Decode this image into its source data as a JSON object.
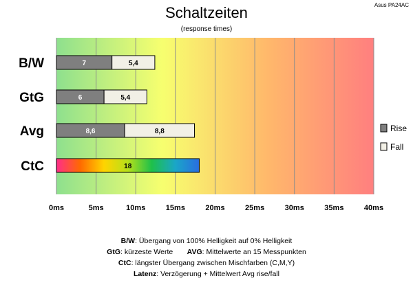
{
  "title": "Schaltzeiten",
  "subtitle": "(response times)",
  "brand": "Asus PA24AC",
  "chart_data": {
    "type": "bar",
    "orientation": "horizontal",
    "stacked": true,
    "categories": [
      "B/W",
      "GtG",
      "Avg",
      "CtC"
    ],
    "series": [
      {
        "name": "Rise",
        "color": "#7f7f7f",
        "values": [
          7,
          6,
          8.6,
          null
        ]
      },
      {
        "name": "Fall",
        "color": "#f2f0e6",
        "values": [
          5.4,
          5.4,
          8.8,
          null
        ]
      }
    ],
    "ctc": {
      "value": 18,
      "label": "18",
      "gradient": [
        "#ff2d8a",
        "#ff6a00",
        "#ffd400",
        "#b7e01a",
        "#1ec04a",
        "#1aa6c8",
        "#2a6de0"
      ]
    },
    "bar_labels": [
      [
        "7",
        "5,4"
      ],
      [
        "6",
        "5,4"
      ],
      [
        "8,6",
        "8,8"
      ],
      [
        "18"
      ]
    ],
    "xlim": [
      0,
      40
    ],
    "x_ticks": [
      "0ms",
      "5ms",
      "10ms",
      "15ms",
      "20ms",
      "25ms",
      "30ms",
      "35ms",
      "40ms"
    ],
    "x_tick_values": [
      0,
      5,
      10,
      15,
      20,
      25,
      30,
      35,
      40
    ],
    "background_gradient": [
      "#8ee08e",
      "#f7ff6f",
      "#ffb86b",
      "#ff7f7f"
    ],
    "legend_position": "right",
    "legend": [
      {
        "label": "Rise",
        "color": "#7f7f7f"
      },
      {
        "label": "Fall",
        "color": "#f2f0e6"
      }
    ]
  },
  "footer": {
    "lines": [
      {
        "bold": "B/W",
        "text": ":  Übergang von 100% Helligkeit auf 0% Helligkeit"
      },
      {
        "bold": "GtG",
        "text": ": kürzeste  Werte",
        "bold2": "AVG",
        "text2": ": Mittelwerte  an 15 Messpunkten"
      },
      {
        "bold": "CtC",
        "text": ": längster Übergang  zwischen Mischfarben (C,M,Y)"
      },
      {
        "bold": "Latenz",
        "text": ": Verzögerung  + Mittelwert  Avg rise/fall"
      }
    ]
  }
}
